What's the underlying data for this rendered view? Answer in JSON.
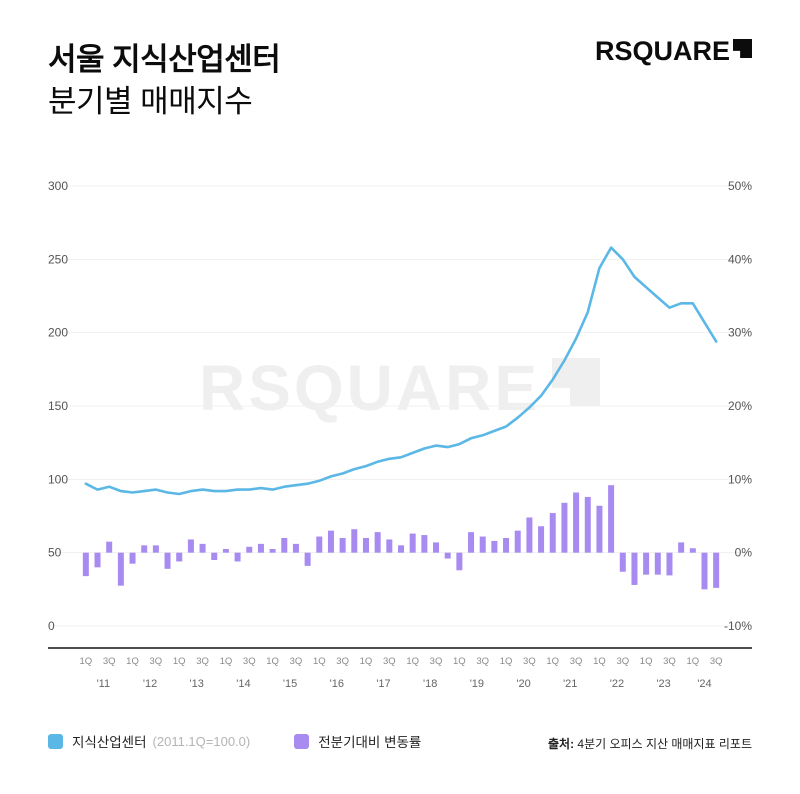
{
  "header": {
    "title_line1": "서울 지식산업센터",
    "title_line2": "분기별 매매지수",
    "logo_text": "RSQUARE"
  },
  "watermark": "RSQUARE",
  "legend": {
    "series1_label": "지식산업센터",
    "series1_note": "(2011.1Q=100.0)",
    "series2_label": "전분기대비 변동률",
    "source_prefix": "출처:",
    "source_text": " 4분기 오피스 지산 매매지표 리포트"
  },
  "chart_data": {
    "type": "line",
    "title": "서울 지식산업센터 분기별 매매지수",
    "years": [
      "'11",
      "'12",
      "'13",
      "'14",
      "'15",
      "'16",
      "'17",
      "'18",
      "'19",
      "'20",
      "'21",
      "'22",
      "'23",
      "'24"
    ],
    "quarter_tick_labels": [
      "1Q",
      "3Q"
    ],
    "left_axis": {
      "min": 0,
      "max": 300,
      "ticks": [
        "300",
        "250",
        "200",
        "150",
        "100",
        "50",
        "0"
      ]
    },
    "right_axis": {
      "min": -10,
      "max": 50,
      "ticks": [
        "50%",
        "40%",
        "30%",
        "20%",
        "10%",
        "0%",
        "-10%"
      ]
    },
    "series": [
      {
        "name": "지식산업센터",
        "render": "line",
        "axis": "left",
        "values": [
          97,
          93,
          95,
          92,
          91,
          92,
          93,
          91,
          90,
          92,
          93,
          92,
          92,
          93,
          93,
          94,
          93,
          95,
          96,
          97,
          99,
          102,
          104,
          107,
          109,
          112,
          114,
          115,
          118,
          121,
          123,
          122,
          124,
          128,
          130,
          133,
          136,
          142,
          149,
          157,
          168,
          181,
          196,
          214,
          244,
          258,
          250,
          238,
          231,
          224,
          217,
          220,
          220,
          207,
          194
        ]
      },
      {
        "name": "전분기대비 변동률",
        "render": "bar",
        "axis": "right",
        "values": [
          -3.2,
          -2.0,
          1.5,
          -4.5,
          -1.5,
          1.0,
          1.0,
          -2.2,
          -1.2,
          1.8,
          1.2,
          -1.0,
          0.5,
          -1.2,
          0.8,
          1.2,
          0.5,
          2.0,
          1.2,
          -1.8,
          2.2,
          3.0,
          2.0,
          3.2,
          2.0,
          2.8,
          1.8,
          1.0,
          2.6,
          2.4,
          1.4,
          -0.8,
          -2.4,
          2.8,
          2.2,
          1.6,
          2.0,
          3.0,
          4.8,
          3.6,
          5.4,
          6.8,
          8.2,
          7.6,
          6.4,
          9.2,
          -2.6,
          -4.4,
          -3.0,
          -3.0,
          -3.1,
          1.4,
          0.6,
          -5.0,
          -4.8
        ]
      }
    ],
    "colors": {
      "line": "#5BB7E5",
      "bar": "#A78BF0",
      "grid": "#f1f1f1",
      "axis_text": "#555555",
      "tick_text": "#8a8a8a",
      "year_text": "#666666",
      "baseline": "#141414",
      "watermark": "#efefef"
    }
  }
}
